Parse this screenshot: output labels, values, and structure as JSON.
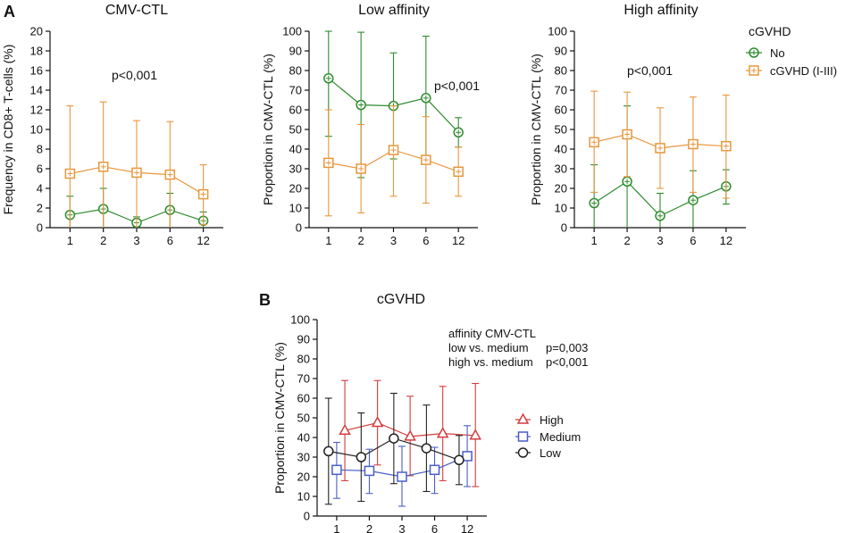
{
  "figure": {
    "panel_a_letter": "A",
    "panel_b_letter": "B"
  },
  "legend_top": {
    "title": "cGVHD",
    "entries": [
      "No",
      "cGVHD (I-III)"
    ]
  },
  "legend_b": {
    "entries": [
      "High",
      "Medium",
      "Low"
    ]
  },
  "annotation_b": {
    "line1": "affinity CMV-CTL",
    "line2_label": "low vs. medium",
    "line2_p": "p=0,003",
    "line3_label": "high vs. medium",
    "line3_p": "p<0,001"
  },
  "colors": {
    "green": "#2e8b2e",
    "orange": "#e8963c",
    "red": "#d43c3c",
    "blue": "#4a5fc7",
    "black": "#222222"
  },
  "chart_data": [
    {
      "id": "cmv",
      "type": "line",
      "title": "CMV-CTL",
      "ylabel": "Frequency in CD8+ T-cells (%)",
      "xlabel": "",
      "categories": [
        "1",
        "2",
        "3",
        "6",
        "12"
      ],
      "ylim": [
        0,
        20
      ],
      "yticks": [
        0,
        2,
        4,
        6,
        8,
        10,
        12,
        14,
        16,
        18,
        20
      ],
      "pvalue": "p<0,001",
      "series": [
        {
          "name": "No",
          "color": "green",
          "marker": "circle",
          "values": [
            1.3,
            1.9,
            0.5,
            1.8,
            0.7
          ],
          "err_low": [
            0,
            0,
            0.1,
            0,
            0
          ],
          "err_high": [
            3.2,
            4.0,
            1.1,
            3.5,
            1.6
          ]
        },
        {
          "name": "cGVHD (I-III)",
          "color": "orange",
          "marker": "square",
          "values": [
            5.5,
            6.2,
            5.6,
            5.4,
            3.4
          ],
          "err_low": [
            0,
            0,
            0,
            0,
            0.3
          ],
          "err_high": [
            12.4,
            12.8,
            10.9,
            10.8,
            6.4
          ]
        }
      ]
    },
    {
      "id": "low",
      "type": "line",
      "title": "Low affinity",
      "ylabel": "Proportion in CMV-CTL (%)",
      "xlabel": "",
      "categories": [
        "1",
        "2",
        "3",
        "6",
        "12"
      ],
      "ylim": [
        0,
        100
      ],
      "yticks": [
        0,
        10,
        20,
        30,
        40,
        50,
        60,
        70,
        80,
        90,
        100
      ],
      "pvalue": "p<0,001",
      "series": [
        {
          "name": "No",
          "color": "green",
          "marker": "circle",
          "values": [
            76,
            62.5,
            62,
            66,
            48.5
          ],
          "err_low": [
            46.5,
            25.5,
            35,
            35,
            41
          ],
          "err_high": [
            100,
            99.5,
            89,
            97.5,
            56
          ]
        },
        {
          "name": "cGVHD (I-III)",
          "color": "orange",
          "marker": "square",
          "values": [
            33,
            30,
            39.5,
            34.5,
            28.5
          ],
          "err_low": [
            6,
            7.5,
            16,
            12.5,
            16
          ],
          "err_high": [
            60,
            52.5,
            62,
            56.5,
            41
          ]
        }
      ]
    },
    {
      "id": "high",
      "type": "line",
      "title": "High affinity",
      "ylabel": "Proportion in CMV-CTL (%)",
      "xlabel": "",
      "categories": [
        "1",
        "2",
        "3",
        "6",
        "12"
      ],
      "ylim": [
        0,
        100
      ],
      "yticks": [
        0,
        10,
        20,
        30,
        40,
        50,
        60,
        70,
        80,
        90,
        100
      ],
      "pvalue": "p<0,001",
      "series": [
        {
          "name": "No",
          "color": "green",
          "marker": "circle",
          "values": [
            12.5,
            23.5,
            6,
            14,
            21
          ],
          "err_low": [
            0,
            0,
            0,
            0,
            12
          ],
          "err_high": [
            32,
            62,
            17.5,
            29,
            29.5
          ]
        },
        {
          "name": "cGVHD (I-III)",
          "color": "orange",
          "marker": "square",
          "values": [
            43.5,
            47.5,
            40.5,
            42.5,
            41.5
          ],
          "err_low": [
            18,
            26,
            20,
            18,
            15
          ],
          "err_high": [
            69.5,
            69,
            61,
            66.5,
            67.5
          ]
        }
      ]
    },
    {
      "id": "cgvhd",
      "type": "line",
      "title": "cGVHD",
      "ylabel": "Proportion in CMV-CTL (%)",
      "xlabel": "",
      "categories": [
        "1",
        "2",
        "3",
        "6",
        "12"
      ],
      "ylim": [
        0,
        100
      ],
      "yticks": [
        0,
        10,
        20,
        30,
        40,
        50,
        60,
        70,
        80,
        90,
        100
      ],
      "series": [
        {
          "name": "High",
          "color": "red",
          "marker": "triangle",
          "offset": 0.25,
          "values": [
            43.5,
            47.5,
            40.5,
            42,
            41
          ],
          "err_low": [
            18,
            26,
            20.5,
            18,
            15
          ],
          "err_high": [
            69,
            69,
            61,
            66,
            67.5
          ]
        },
        {
          "name": "Medium",
          "color": "blue",
          "marker": "square",
          "offset": 0,
          "values": [
            23.5,
            23,
            20,
            23.5,
            30.5
          ],
          "err_low": [
            9,
            11.5,
            5,
            11.5,
            15
          ],
          "err_high": [
            37.5,
            34,
            35.5,
            35,
            46
          ]
        },
        {
          "name": "Low",
          "color": "black",
          "marker": "circle",
          "offset": -0.25,
          "values": [
            33,
            30,
            39.5,
            34.5,
            28.5
          ],
          "err_low": [
            6,
            7.5,
            16.5,
            12.5,
            16
          ],
          "err_high": [
            60,
            52.5,
            62.5,
            56.5,
            41
          ]
        }
      ]
    }
  ]
}
